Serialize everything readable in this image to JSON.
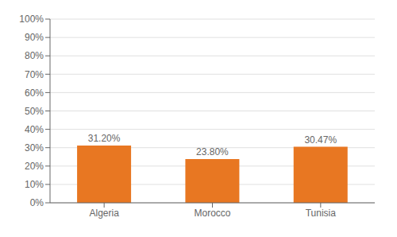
{
  "chart_data": {
    "type": "bar",
    "categories": [
      "Algeria",
      "Morocco",
      "Tunisia"
    ],
    "values": [
      31.2,
      23.8,
      30.47
    ],
    "value_labels": [
      "31.20%",
      "23.80%",
      "30.47%"
    ],
    "data_labels": true,
    "color": "#E87722",
    "ylim": [
      0,
      100
    ],
    "yticks": [
      {
        "value": 0,
        "label": "0%"
      },
      {
        "value": 10,
        "label": "10%"
      },
      {
        "value": 20,
        "label": "20%"
      },
      {
        "value": 30,
        "label": "30%"
      },
      {
        "value": 40,
        "label": "40%"
      },
      {
        "value": 50,
        "label": "50%"
      },
      {
        "value": 60,
        "label": "60%"
      },
      {
        "value": 70,
        "label": "70%"
      },
      {
        "value": 80,
        "label": "80%"
      },
      {
        "value": 90,
        "label": "90%"
      },
      {
        "value": 100,
        "label": "100%"
      }
    ],
    "grid": true
  }
}
